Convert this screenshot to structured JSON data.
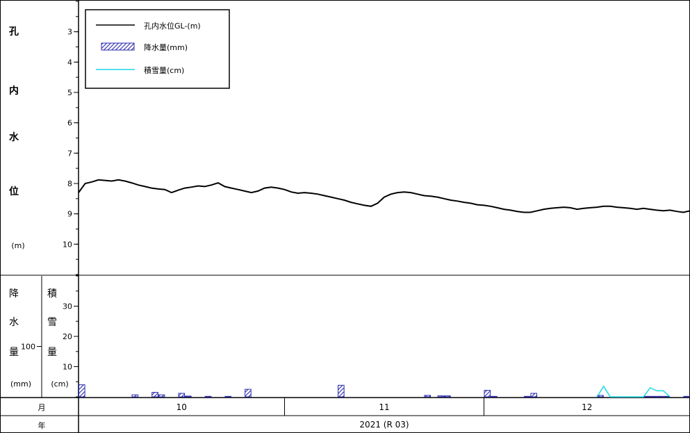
{
  "chart_data": {
    "type": "line",
    "water_level_panel": {
      "y_axis_label_chars": [
        "孔",
        "内",
        "水",
        "位"
      ],
      "y_unit": "(m)",
      "y_ticks": [
        "3",
        "4",
        "5",
        "6",
        "7",
        "8",
        "9",
        "10"
      ],
      "y_min": 2.0,
      "y_max": 11.0,
      "y_reversed": true,
      "x_range_days": [
        0,
        92
      ],
      "series": [
        {
          "name": "孔内水位GL-(m)",
          "color": "#000000",
          "points": [
            [
              0,
              8.3
            ],
            [
              1,
              8.0
            ],
            [
              2,
              7.95
            ],
            [
              3,
              7.88
            ],
            [
              4,
              7.9
            ],
            [
              5,
              7.92
            ],
            [
              6,
              7.88
            ],
            [
              7,
              7.92
            ],
            [
              8,
              7.98
            ],
            [
              9,
              8.05
            ],
            [
              10,
              8.1
            ],
            [
              11,
              8.15
            ],
            [
              12,
              8.18
            ],
            [
              13,
              8.2
            ],
            [
              14,
              8.3
            ],
            [
              15,
              8.22
            ],
            [
              16,
              8.15
            ],
            [
              17,
              8.12
            ],
            [
              18,
              8.08
            ],
            [
              19,
              8.1
            ],
            [
              20,
              8.05
            ],
            [
              21,
              7.98
            ],
            [
              22,
              8.1
            ],
            [
              23,
              8.15
            ],
            [
              24,
              8.2
            ],
            [
              25,
              8.25
            ],
            [
              26,
              8.3
            ],
            [
              27,
              8.25
            ],
            [
              28,
              8.15
            ],
            [
              29,
              8.12
            ],
            [
              30,
              8.15
            ],
            [
              31,
              8.2
            ],
            [
              32,
              8.28
            ],
            [
              33,
              8.32
            ],
            [
              34,
              8.3
            ],
            [
              35,
              8.32
            ],
            [
              36,
              8.35
            ],
            [
              37,
              8.4
            ],
            [
              38,
              8.45
            ],
            [
              39,
              8.5
            ],
            [
              40,
              8.55
            ],
            [
              41,
              8.62
            ],
            [
              42,
              8.67
            ],
            [
              43,
              8.72
            ],
            [
              44,
              8.75
            ],
            [
              45,
              8.65
            ],
            [
              46,
              8.45
            ],
            [
              47,
              8.35
            ],
            [
              48,
              8.3
            ],
            [
              49,
              8.28
            ],
            [
              50,
              8.3
            ],
            [
              51,
              8.35
            ],
            [
              52,
              8.4
            ],
            [
              53,
              8.42
            ],
            [
              54,
              8.45
            ],
            [
              55,
              8.5
            ],
            [
              56,
              8.55
            ],
            [
              57,
              8.58
            ],
            [
              58,
              8.62
            ],
            [
              59,
              8.65
            ],
            [
              60,
              8.7
            ],
            [
              61,
              8.72
            ],
            [
              62,
              8.75
            ],
            [
              63,
              8.8
            ],
            [
              64,
              8.85
            ],
            [
              65,
              8.88
            ],
            [
              66,
              8.92
            ],
            [
              67,
              8.95
            ],
            [
              68,
              8.95
            ],
            [
              69,
              8.9
            ],
            [
              70,
              8.85
            ],
            [
              71,
              8.82
            ],
            [
              72,
              8.8
            ],
            [
              73,
              8.78
            ],
            [
              74,
              8.8
            ],
            [
              75,
              8.85
            ],
            [
              76,
              8.82
            ],
            [
              77,
              8.8
            ],
            [
              78,
              8.78
            ],
            [
              79,
              8.75
            ],
            [
              80,
              8.75
            ],
            [
              81,
              8.78
            ],
            [
              82,
              8.8
            ],
            [
              83,
              8.82
            ],
            [
              84,
              8.85
            ],
            [
              85,
              8.82
            ],
            [
              86,
              8.85
            ],
            [
              87,
              8.88
            ],
            [
              88,
              8.9
            ],
            [
              89,
              8.88
            ],
            [
              90,
              8.92
            ],
            [
              91,
              8.95
            ],
            [
              92,
              8.9
            ]
          ]
        }
      ]
    },
    "precip_panel": {
      "precip_axis_label_chars": [
        "降",
        "水",
        "量"
      ],
      "precip_unit": "(mm)",
      "precip_ticks": [
        "100"
      ],
      "precip_max": 240,
      "snow_axis_label_chars": [
        "積",
        "雪",
        "量"
      ],
      "snow_unit": "(cm)",
      "snow_ticks": [
        "10",
        "20",
        "30"
      ],
      "snow_max": 40,
      "series": [
        {
          "name": "降水量(mm)",
          "type": "bar",
          "color": "#2a2ab0",
          "bars": [
            [
              0,
              24
            ],
            [
              8,
              4
            ],
            [
              11,
              9
            ],
            [
              12,
              4
            ],
            [
              15,
              7
            ],
            [
              16,
              1.5
            ],
            [
              19,
              1
            ],
            [
              22,
              1
            ],
            [
              25,
              15
            ],
            [
              39,
              23
            ],
            [
              52,
              3
            ],
            [
              54,
              2
            ],
            [
              55,
              2
            ],
            [
              61,
              13
            ],
            [
              62,
              1
            ],
            [
              67,
              1
            ],
            [
              68,
              7
            ],
            [
              78,
              3
            ],
            [
              85,
              1
            ],
            [
              86,
              1
            ],
            [
              87,
              1
            ],
            [
              88,
              1
            ],
            [
              91,
              1
            ]
          ]
        },
        {
          "name": "積雪量(cm)",
          "type": "line",
          "color": "#19d9e6",
          "points": [
            [
              78,
              0
            ],
            [
              79,
              3.5
            ],
            [
              80,
              0
            ],
            [
              85,
              0
            ],
            [
              86,
              3
            ],
            [
              87,
              2
            ],
            [
              88,
              2
            ],
            [
              89,
              0
            ]
          ]
        }
      ]
    },
    "month_row_label": "月",
    "months": [
      {
        "label": "10",
        "start": 0,
        "end": 31
      },
      {
        "label": "11",
        "start": 31,
        "end": 61
      },
      {
        "label": "12",
        "start": 61,
        "end": 92
      }
    ],
    "year_row_label": "年",
    "year_label": "2021 (R 03)",
    "legend": {
      "placement": "top-left",
      "entries": [
        {
          "label": "孔内水位GL-(m)",
          "kind": "line",
          "color": "#000000"
        },
        {
          "label": "降水量(mm)",
          "kind": "bar",
          "color": "#2a2ab0"
        },
        {
          "label": "積雪量(cm)",
          "kind": "line",
          "color": "#19d9e6"
        }
      ]
    }
  }
}
